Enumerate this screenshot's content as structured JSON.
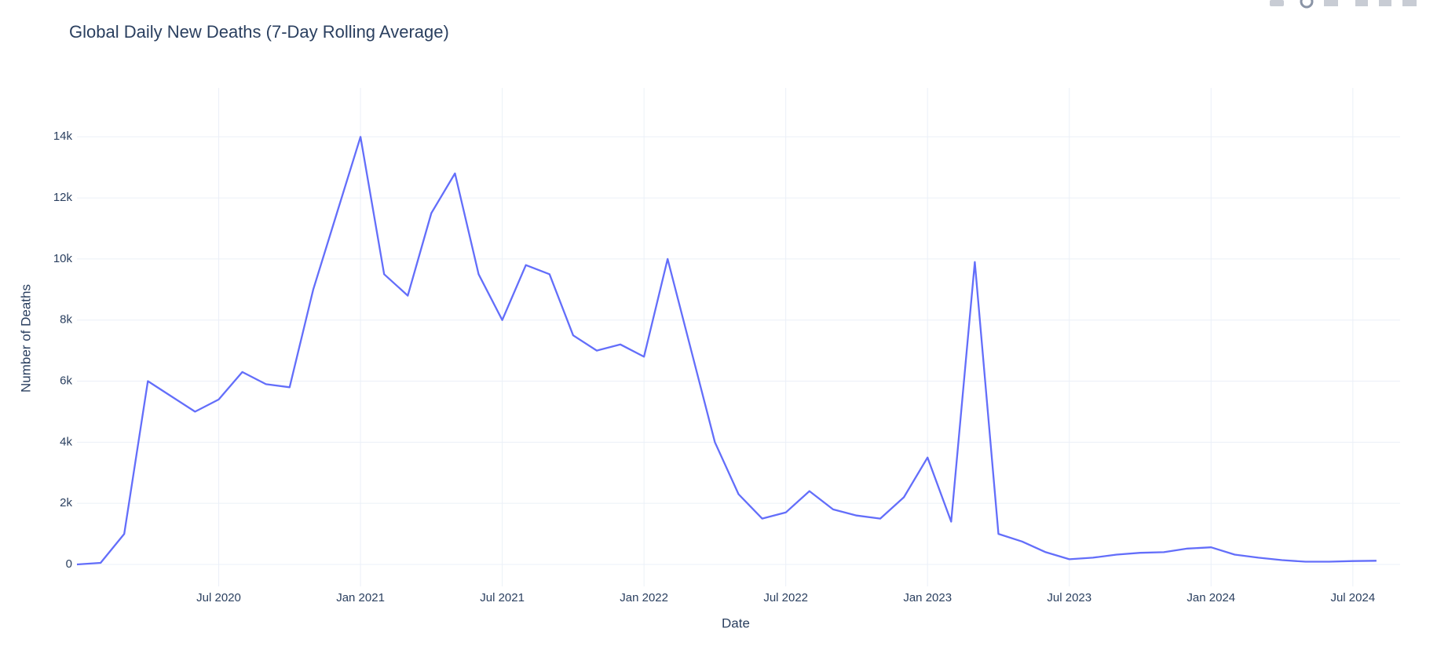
{
  "chart_data": {
    "type": "line",
    "title": "Global Daily New Deaths (7-Day Rolling Average)",
    "x_label": "Date",
    "y_label": "Number of Deaths",
    "x": [
      "2020-01",
      "2020-02",
      "2020-03",
      "2020-04",
      "2020-05",
      "2020-06",
      "2020-07",
      "2020-08",
      "2020-09",
      "2020-10",
      "2020-11",
      "2020-12",
      "2021-01",
      "2021-02",
      "2021-03",
      "2021-04",
      "2021-05",
      "2021-06",
      "2021-07",
      "2021-08",
      "2021-09",
      "2021-10",
      "2021-11",
      "2021-12",
      "2022-01",
      "2022-02",
      "2022-03",
      "2022-04",
      "2022-05",
      "2022-06",
      "2022-07",
      "2022-08",
      "2022-09",
      "2022-10",
      "2022-11",
      "2022-12",
      "2023-01",
      "2023-02",
      "2023-03",
      "2023-04",
      "2023-05",
      "2023-06",
      "2023-07",
      "2023-08",
      "2023-09",
      "2023-10",
      "2023-11",
      "2023-12",
      "2024-01",
      "2024-02",
      "2024-03",
      "2024-04",
      "2024-05",
      "2024-06",
      "2024-07",
      "2024-08"
    ],
    "series": [
      {
        "name": "Deaths",
        "color": "#636efa",
        "values": [
          0,
          50,
          1000,
          6000,
          5500,
          5000,
          5400,
          6300,
          5900,
          5800,
          9000,
          11500,
          14000,
          9500,
          8800,
          11500,
          12800,
          9500,
          8000,
          9800,
          9500,
          7500,
          7000,
          7200,
          6800,
          10000,
          7000,
          4000,
          2300,
          1500,
          1700,
          2400,
          1800,
          1600,
          1500,
          2200,
          3500,
          1400,
          9900,
          1000,
          750,
          400,
          170,
          220,
          320,
          380,
          400,
          520,
          560,
          320,
          220,
          140,
          90,
          90,
          110,
          120
        ]
      }
    ],
    "xlim": [
      "2020-01",
      "2024-09"
    ],
    "xticks": [
      {
        "value": "2020-07",
        "label": "Jul 2020"
      },
      {
        "value": "2021-01",
        "label": "Jan 2021"
      },
      {
        "value": "2021-07",
        "label": "Jul 2021"
      },
      {
        "value": "2022-01",
        "label": "Jan 2022"
      },
      {
        "value": "2022-07",
        "label": "Jul 2022"
      },
      {
        "value": "2023-01",
        "label": "Jan 2023"
      },
      {
        "value": "2023-07",
        "label": "Jul 2023"
      },
      {
        "value": "2024-01",
        "label": "Jan 2024"
      },
      {
        "value": "2024-07",
        "label": "Jul 2024"
      }
    ],
    "ylim": [
      -720,
      15600
    ],
    "yticks": [
      0,
      {
        "value": 2000,
        "label": "2k"
      },
      {
        "value": 4000,
        "label": "4k"
      },
      {
        "value": 6000,
        "label": "6k"
      },
      {
        "value": 8000,
        "label": "8k"
      },
      {
        "value": 10000,
        "label": "10k"
      },
      {
        "value": 12000,
        "label": "12k"
      },
      {
        "value": 14000,
        "label": "14k"
      }
    ],
    "grid": true
  }
}
